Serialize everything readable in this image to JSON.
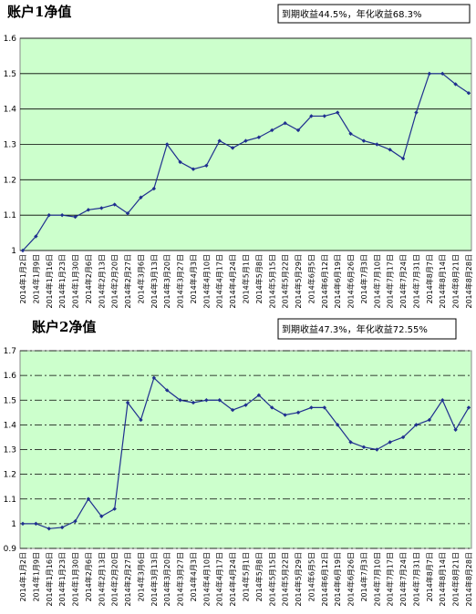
{
  "chart_data": [
    {
      "type": "line",
      "title": "账户1净值",
      "annotation": "到期收益44.5%，年化收益68.3%",
      "categories": [
        "2014年1月2日",
        "2014年1月9日",
        "2014年1月16日",
        "2014年1月23日",
        "2014年1月30日",
        "2014年2月6日",
        "2014年2月13日",
        "2014年2月20日",
        "2014年2月27日",
        "2014年3月6日",
        "2014年3月13日",
        "2014年3月20日",
        "2014年3月27日",
        "2014年4月3日",
        "2014年4月10日",
        "2014年4月17日",
        "2014年4月24日",
        "2014年5月1日",
        "2014年5月8日",
        "2014年5月15日",
        "2014年5月22日",
        "2014年5月29日",
        "2014年6月5日",
        "2014年6月12日",
        "2014年6月19日",
        "2014年6月26日",
        "2014年7月3日",
        "2014年7月10日",
        "2014年7月17日",
        "2014年7月24日",
        "2014年7月31日",
        "2014年8月7日",
        "2014年8月14日",
        "2014年8月21日",
        "2014年8月28日"
      ],
      "values": [
        1.0,
        1.04,
        1.1,
        1.1,
        1.095,
        1.115,
        1.12,
        1.13,
        1.105,
        1.15,
        1.175,
        1.3,
        1.25,
        1.23,
        1.24,
        1.31,
        1.29,
        1.31,
        1.32,
        1.34,
        1.36,
        1.34,
        1.38,
        1.38,
        1.39,
        1.33,
        1.31,
        1.3,
        1.285,
        1.26,
        1.39,
        1.5,
        1.5,
        1.47,
        1.445
      ],
      "color": "#1f2f8f",
      "ylim": [
        1,
        1.6
      ],
      "yticks": [
        1,
        1.1,
        1.2,
        1.3,
        1.4,
        1.5,
        1.6
      ],
      "grid": "solid"
    },
    {
      "type": "line",
      "title": "账户2净值",
      "annotation": "到期收益47.3%，年化收益72.55%",
      "categories": [
        "2014年1月2日",
        "2014年1月9日",
        "2014年1月16日",
        "2014年1月23日",
        "2014年1月30日",
        "2014年2月6日",
        "2014年2月13日",
        "2014年2月20日",
        "2014年2月27日",
        "2014年3月6日",
        "2014年3月13日",
        "2014年3月20日",
        "2014年3月27日",
        "2014年4月3日",
        "2014年4月10日",
        "2014年4月17日",
        "2014年4月24日",
        "2014年5月1日",
        "2014年5月8日",
        "2014年5月15日",
        "2014年5月22日",
        "2014年5月29日",
        "2014年6月5日",
        "2014年6月12日",
        "2014年6月19日",
        "2014年6月26日",
        "2014年7月3日",
        "2014年7月10日",
        "2014年7月17日",
        "2014年7月24日",
        "2014年7月31日",
        "2014年8月7日",
        "2014年8月14日",
        "2014年8月21日",
        "2014年8月28日"
      ],
      "values": [
        1.0,
        1.0,
        0.98,
        0.985,
        1.01,
        1.1,
        1.03,
        1.06,
        1.49,
        1.42,
        1.59,
        1.54,
        1.5,
        1.49,
        1.5,
        1.5,
        1.46,
        1.48,
        1.52,
        1.47,
        1.44,
        1.45,
        1.47,
        1.47,
        1.4,
        1.33,
        1.31,
        1.3,
        1.33,
        1.35,
        1.4,
        1.42,
        1.5,
        1.38,
        1.47
      ],
      "color": "#1f2f8f",
      "ylim": [
        0.9,
        1.7
      ],
      "yticks": [
        0.9,
        1,
        1.1,
        1.2,
        1.3,
        1.4,
        1.5,
        1.6,
        1.7
      ],
      "grid": "dashdot"
    }
  ]
}
